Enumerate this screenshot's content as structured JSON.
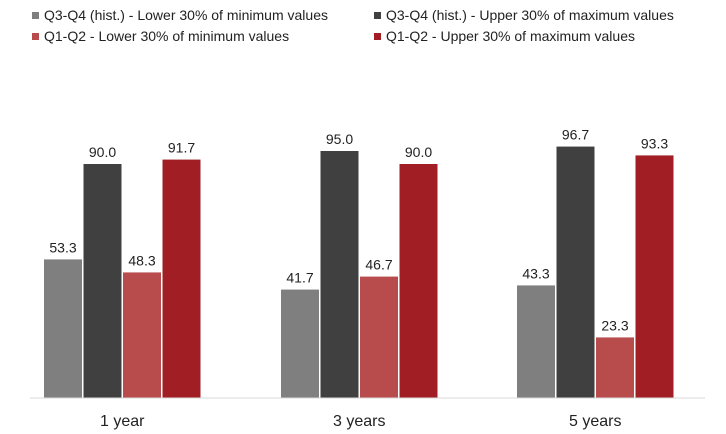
{
  "chart_data": {
    "type": "bar",
    "title": "",
    "xlabel": "",
    "ylabel": "",
    "categories": [
      "1 year",
      "3 years",
      "5 years"
    ],
    "ylim": [
      0,
      100
    ],
    "grid": false,
    "legend_position": "top",
    "series": [
      {
        "name": "Q3-Q4 (hist.) - Lower 30% of minimum values",
        "color": "#7f7f7f",
        "values": [
          53.3,
          41.7,
          43.3
        ],
        "labels": [
          "53.3",
          "41.7",
          "43.3"
        ]
      },
      {
        "name": "Q3-Q4 (hist.) - Upper 30% of maximum values",
        "color": "#404040",
        "values": [
          90.0,
          95.0,
          96.7
        ],
        "labels": [
          "90.0",
          "95.0",
          "96.7"
        ]
      },
      {
        "name": "Q1-Q2 - Lower 30% of minimum values",
        "color": "#b84c4c",
        "values": [
          48.3,
          46.7,
          23.3
        ],
        "labels": [
          "48.3",
          "46.7",
          "23.3"
        ]
      },
      {
        "name": "Q1-Q2 - Upper 30% of maximum values",
        "color": "#a11f24",
        "values": [
          91.7,
          90.0,
          93.3
        ],
        "labels": [
          "91.7",
          "90.0",
          "93.3"
        ]
      }
    ]
  }
}
